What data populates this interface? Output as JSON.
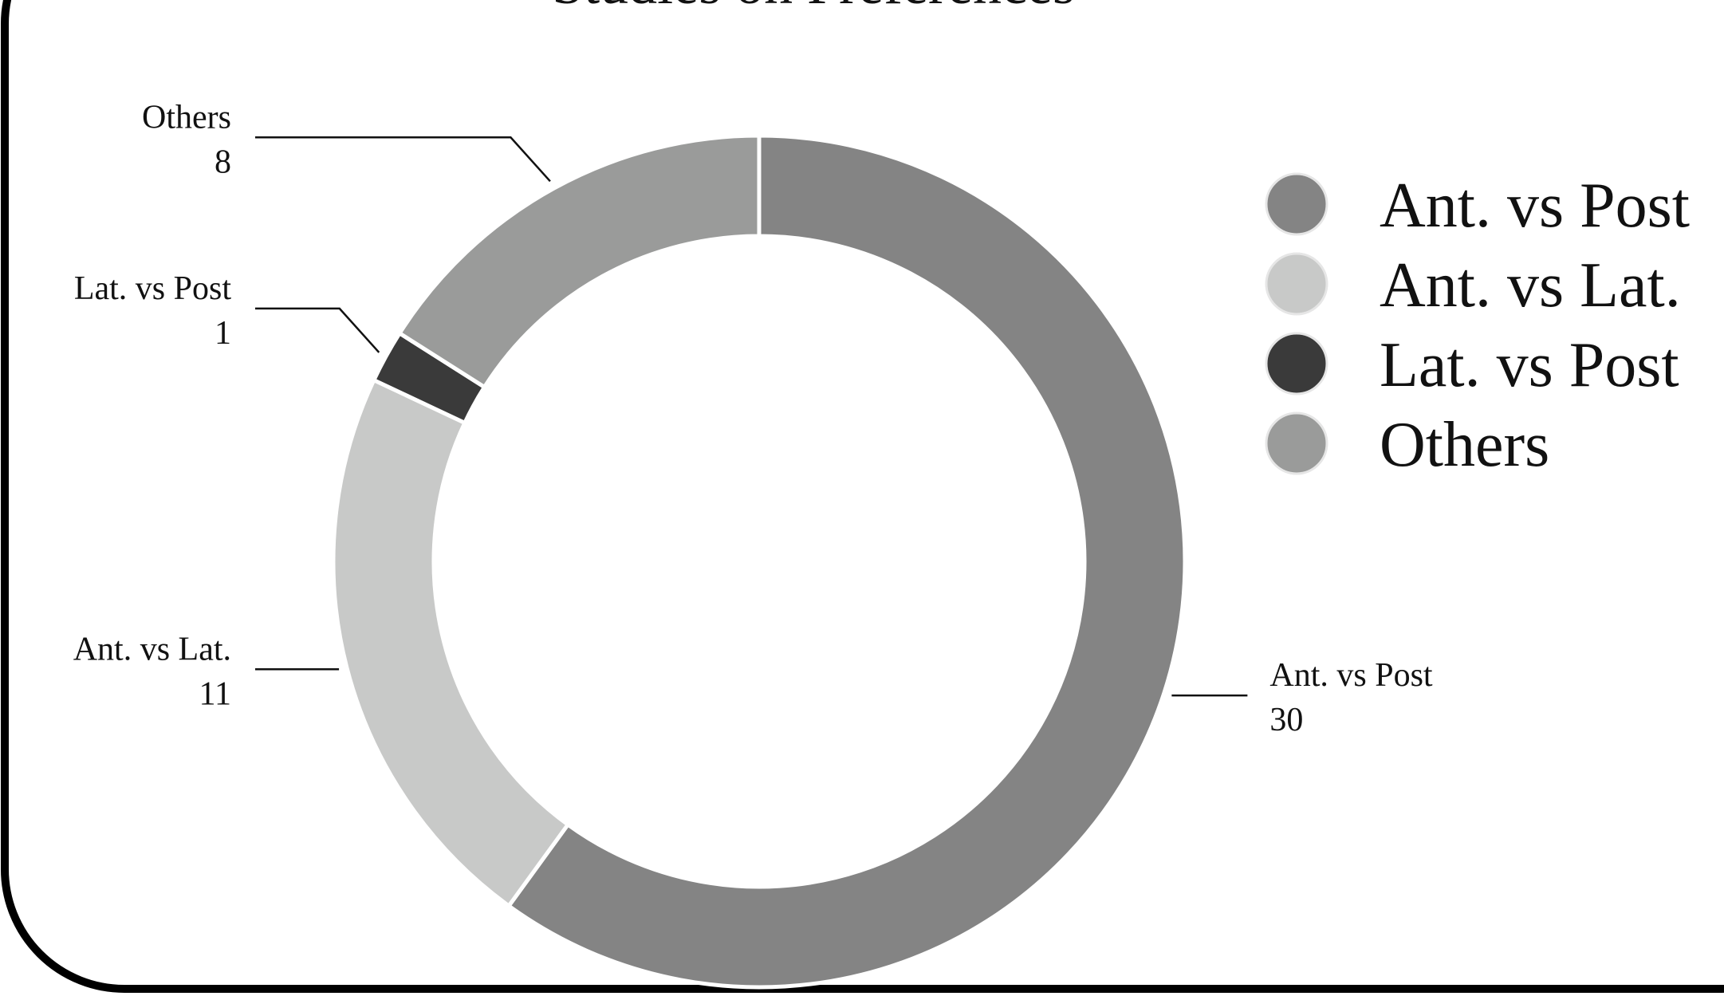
{
  "chart_data": {
    "type": "pie",
    "variant": "donut",
    "title": "Studies on Preferences",
    "categories": [
      "Ant. vs Post",
      "Ant. vs Lat.",
      "Lat. vs Post",
      "Others"
    ],
    "values": [
      30,
      11,
      1,
      8
    ],
    "colors": [
      "#848484",
      "#c8c9c8",
      "#3a3a3a",
      "#9a9b9a"
    ],
    "legend": {
      "position": "right",
      "entries": [
        "Ant. vs Post",
        "Ant. vs Lat.",
        "Lat. vs Post",
        "Others"
      ]
    },
    "data_labels": [
      {
        "category": "Ant. vs Post",
        "value": "30"
      },
      {
        "category": "Ant. vs Lat.",
        "value": "11"
      },
      {
        "category": "Lat. vs Post",
        "value": "1"
      },
      {
        "category": "Others",
        "value": "8"
      }
    ]
  }
}
